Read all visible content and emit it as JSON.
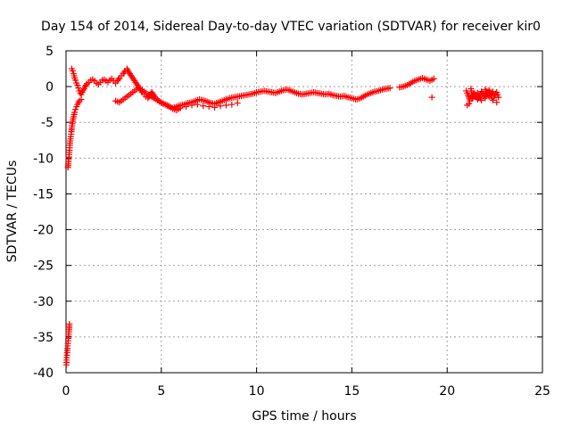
{
  "chart_data": {
    "type": "scatter",
    "title": "Day 154 of 2014, Sidereal Day-to-day VTEC variation (SDTVAR) for receiver kir0",
    "xlabel": "GPS time / hours",
    "ylabel": "SDTVAR / TECUs",
    "xlim": [
      0,
      25
    ],
    "ylim": [
      -40,
      5
    ],
    "xticks": [
      "0",
      "5",
      "10",
      "15",
      "20",
      "25"
    ],
    "yticks": [
      "5",
      "0",
      "-5",
      "-10",
      "-15",
      "-20",
      "-25",
      "-30",
      "-35",
      "-40"
    ],
    "grid": true,
    "marker": "+",
    "color": "#ff0000",
    "series": [
      {
        "name": "kir0",
        "x": [
          0.02,
          0.04,
          0.06,
          0.08,
          0.1,
          0.12,
          0.14,
          0.16,
          0.18,
          0.1,
          0.12,
          0.14,
          0.16,
          0.18,
          0.2,
          0.22,
          0.25,
          0.28,
          0.3,
          0.33,
          0.36,
          0.4,
          0.45,
          0.5,
          0.55,
          0.6,
          0.7,
          0.8,
          0.3,
          0.35,
          0.4,
          0.45,
          0.5,
          0.55,
          0.6,
          0.65,
          0.7,
          0.75,
          0.8,
          0.85,
          0.9,
          0.95,
          1.0,
          1.05,
          1.1,
          1.2,
          1.3,
          1.4,
          1.5,
          1.6,
          1.7,
          1.8,
          1.9,
          2.0,
          2.1,
          2.2,
          2.3,
          2.4,
          2.5,
          2.6,
          2.7,
          2.8,
          2.9,
          3.0,
          3.1,
          3.2,
          3.3,
          3.4,
          3.5,
          3.6,
          3.7,
          3.8,
          3.9,
          4.0,
          4.1,
          4.2,
          4.3,
          4.4,
          4.5,
          4.6,
          4.7,
          4.8,
          4.9,
          5.0,
          5.2,
          5.4,
          5.6,
          5.8,
          6.0,
          6.2,
          6.4,
          6.6,
          6.8,
          7.0,
          7.2,
          7.4,
          7.6,
          7.8,
          8.0,
          8.2,
          8.4,
          8.6,
          8.8,
          9.0,
          9.2,
          9.4,
          9.6,
          9.8,
          10.0,
          10.2,
          10.4,
          10.6,
          10.8,
          11.0,
          11.2,
          11.4,
          11.6,
          11.8,
          12.0,
          12.2,
          12.4,
          12.6,
          12.8,
          13.0,
          13.2,
          13.4,
          13.6,
          13.8,
          14.0,
          14.2,
          14.4,
          14.6,
          14.8,
          15.0,
          15.2,
          15.4,
          15.6,
          15.8,
          16.0,
          16.2,
          16.4,
          16.6,
          16.8,
          17.0,
          17.5,
          17.7,
          17.9,
          18.1,
          18.3,
          18.5,
          18.7,
          18.9,
          19.1,
          19.3,
          19.2,
          21.0,
          21.1,
          21.2,
          21.3,
          21.4,
          21.5,
          21.6,
          21.7,
          21.8,
          21.9,
          22.0,
          22.1,
          22.2,
          22.3,
          22.4,
          22.5,
          22.6,
          22.7,
          21.05,
          21.15,
          21.25,
          21.35,
          21.6,
          21.8,
          22.0,
          22.2,
          22.4,
          22.6,
          2.6,
          2.8,
          3.0,
          3.2,
          3.4,
          3.6,
          3.8,
          4.0,
          4.2,
          4.4,
          4.6,
          4.8,
          5.0,
          5.2,
          5.4,
          5.6,
          5.8,
          6.0,
          6.3,
          6.6,
          6.9,
          7.2,
          7.5,
          7.8,
          8.1,
          8.4,
          8.7,
          9.0
        ],
        "y": [
          -38.9,
          -37.9,
          -37.2,
          -36.6,
          -35.9,
          -35.2,
          -34.6,
          -34.0,
          -33.2,
          -11.3,
          -10.8,
          -10.2,
          -9.5,
          -8.9,
          -8.2,
          -7.6,
          -7.0,
          -6.3,
          -5.8,
          -5.2,
          -4.7,
          -4.2,
          -3.6,
          -3.2,
          -2.8,
          -2.5,
          -2.0,
          -1.8,
          2.5,
          2.2,
          1.8,
          1.2,
          0.9,
          0.5,
          0.2,
          -0.2,
          -0.6,
          -0.9,
          -1.1,
          -0.8,
          -0.5,
          -0.3,
          0.0,
          0.2,
          0.4,
          0.6,
          0.9,
          1.0,
          0.8,
          0.5,
          0.3,
          0.6,
          0.9,
          1.0,
          0.8,
          0.6,
          0.9,
          1.1,
          0.8,
          0.5,
          0.8,
          1.2,
          1.5,
          1.8,
          2.2,
          2.5,
          2.0,
          1.6,
          1.2,
          0.8,
          0.4,
          0.0,
          -0.4,
          -0.8,
          -1.1,
          -1.4,
          -1.6,
          -1.2,
          -0.8,
          -1.2,
          -1.6,
          -1.9,
          -2.1,
          -2.3,
          -2.5,
          -2.7,
          -3.0,
          -2.8,
          -2.6,
          -2.5,
          -2.3,
          -2.2,
          -2.0,
          -1.8,
          -1.9,
          -2.1,
          -2.3,
          -2.4,
          -2.2,
          -2.0,
          -1.8,
          -1.6,
          -1.5,
          -1.4,
          -1.3,
          -1.2,
          -1.1,
          -1.0,
          -0.8,
          -0.7,
          -0.6,
          -0.7,
          -0.8,
          -0.9,
          -0.7,
          -0.5,
          -0.4,
          -0.6,
          -0.8,
          -1.0,
          -1.1,
          -1.0,
          -0.9,
          -0.8,
          -0.9,
          -1.0,
          -1.1,
          -1.0,
          -1.2,
          -1.3,
          -1.4,
          -1.3,
          -1.5,
          -1.6,
          -1.8,
          -1.7,
          -1.4,
          -1.1,
          -0.9,
          -0.7,
          -0.6,
          -0.4,
          -0.3,
          -0.2,
          -0.1,
          0.0,
          0.2,
          0.5,
          0.8,
          1.0,
          1.2,
          1.0,
          0.8,
          1.1,
          -1.5,
          -0.6,
          -1.2,
          -2.0,
          -1.7,
          -0.9,
          -1.3,
          -1.8,
          -1.4,
          -0.7,
          -1.1,
          -1.6,
          -1.0,
          -0.5,
          -1.3,
          -1.9,
          -1.2,
          -0.8,
          -1.5,
          -2.6,
          -2.4,
          -0.3,
          -1.6,
          -0.9,
          -1.9,
          -0.4,
          -1.4,
          -0.7,
          -2.2,
          -2.0,
          -2.2,
          -1.8,
          -1.4,
          -1.0,
          -0.6,
          -0.2,
          -0.5,
          -0.9,
          -1.3,
          -1.6,
          -1.9,
          -2.2,
          -2.5,
          -2.8,
          -3.1,
          -3.3,
          -3.0,
          -2.8,
          -2.6,
          -2.5,
          -2.7,
          -2.8,
          -2.9,
          -2.7,
          -2.6,
          -2.5,
          -2.3
        ]
      }
    ]
  }
}
